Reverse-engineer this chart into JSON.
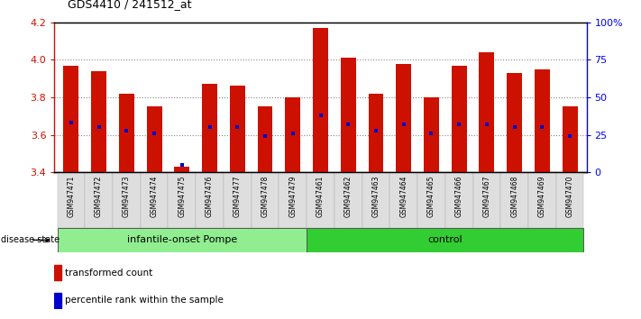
{
  "title": "GDS4410 / 241512_at",
  "samples": [
    "GSM947471",
    "GSM947472",
    "GSM947473",
    "GSM947474",
    "GSM947475",
    "GSM947476",
    "GSM947477",
    "GSM947478",
    "GSM947479",
    "GSM947461",
    "GSM947462",
    "GSM947463",
    "GSM947464",
    "GSM947465",
    "GSM947466",
    "GSM947467",
    "GSM947468",
    "GSM947469",
    "GSM947470"
  ],
  "transformed_count": [
    3.97,
    3.94,
    3.82,
    3.75,
    3.43,
    3.87,
    3.86,
    3.75,
    3.8,
    4.17,
    4.01,
    3.82,
    3.98,
    3.8,
    3.97,
    4.04,
    3.93,
    3.95,
    3.75
  ],
  "percentile_rank_pct": [
    33,
    30,
    28,
    26,
    5,
    30,
    30,
    24,
    26,
    38,
    32,
    28,
    32,
    26,
    32,
    32,
    30,
    30,
    24
  ],
  "groups": {
    "infantile-onset Pompe": [
      0,
      1,
      2,
      3,
      4,
      5,
      6,
      7,
      8
    ],
    "control": [
      9,
      10,
      11,
      12,
      13,
      14,
      15,
      16,
      17,
      18
    ]
  },
  "group_colors": {
    "infantile-onset Pompe": "#90EE90",
    "control": "#32CD32"
  },
  "bar_color": "#CC1100",
  "blue_marker_color": "#0000CC",
  "ylim": [
    3.4,
    4.2
  ],
  "left_yticks": [
    3.4,
    3.6,
    3.8,
    4.0,
    4.2
  ],
  "grid_yticks": [
    3.6,
    3.8,
    4.0
  ],
  "right_yticks": [
    0,
    25,
    50,
    75,
    100
  ],
  "right_yticklabels": [
    "0",
    "25",
    "50",
    "75",
    "100%"
  ],
  "legend_items": [
    {
      "label": "transformed count",
      "color": "#CC1100"
    },
    {
      "label": "percentile rank within the sample",
      "color": "#0000CC"
    }
  ],
  "disease_state_label": "disease state",
  "fig_width": 7.11,
  "fig_height": 3.54
}
